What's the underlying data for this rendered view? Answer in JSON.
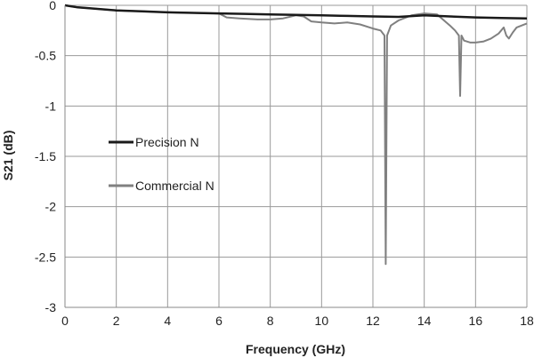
{
  "chart_data": {
    "type": "line",
    "xlabel": "Frequency (GHz)",
    "ylabel": "S21 (dB)",
    "xlim": [
      0,
      18
    ],
    "ylim": [
      -3,
      0
    ],
    "xticks": [
      "0",
      "2",
      "4",
      "6",
      "8",
      "10",
      "12",
      "14",
      "16",
      "18"
    ],
    "yticks": [
      "0",
      "-0.5",
      "-1",
      "-1.5",
      "-2",
      "-2.5",
      "-3"
    ],
    "grid": true,
    "legend_position": "left-middle",
    "series": [
      {
        "name": "Precision N",
        "color": "#1a1a1a",
        "x": [
          0,
          0.5,
          1,
          2,
          3,
          4,
          5,
          6,
          7,
          8,
          9,
          10,
          11,
          12,
          13,
          14,
          15,
          16,
          17,
          18
        ],
        "y": [
          0,
          -0.02,
          -0.03,
          -0.05,
          -0.06,
          -0.07,
          -0.075,
          -0.08,
          -0.085,
          -0.09,
          -0.095,
          -0.1,
          -0.105,
          -0.11,
          -0.115,
          -0.1,
          -0.11,
          -0.12,
          -0.125,
          -0.13
        ]
      },
      {
        "name": "Commercial N",
        "color": "#808080",
        "x": [
          0,
          0.5,
          1,
          2,
          3,
          4,
          5,
          6,
          6.3,
          6.8,
          7.5,
          8,
          8.5,
          9,
          9.3,
          9.6,
          10,
          10.5,
          11,
          11.5,
          12,
          12.3,
          12.45,
          12.5,
          12.55,
          12.7,
          13,
          13.5,
          14,
          14.5,
          15,
          15.2,
          15.35,
          15.4,
          15.45,
          15.55,
          15.8,
          16,
          16.3,
          16.6,
          16.9,
          17.1,
          17.2,
          17.3,
          17.45,
          17.6,
          17.8,
          18
        ],
        "y": [
          0,
          -0.02,
          -0.03,
          -0.05,
          -0.06,
          -0.07,
          -0.075,
          -0.08,
          -0.12,
          -0.13,
          -0.14,
          -0.14,
          -0.13,
          -0.1,
          -0.11,
          -0.16,
          -0.17,
          -0.18,
          -0.17,
          -0.19,
          -0.23,
          -0.25,
          -0.3,
          -2.57,
          -0.3,
          -0.2,
          -0.15,
          -0.1,
          -0.08,
          -0.09,
          -0.2,
          -0.25,
          -0.3,
          -0.9,
          -0.3,
          -0.35,
          -0.37,
          -0.37,
          -0.36,
          -0.33,
          -0.28,
          -0.22,
          -0.3,
          -0.33,
          -0.27,
          -0.22,
          -0.2,
          -0.18
        ]
      }
    ]
  }
}
